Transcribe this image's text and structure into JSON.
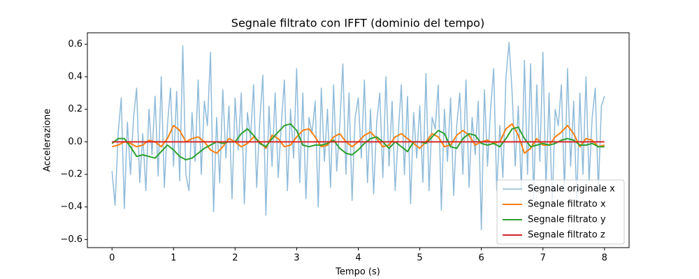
{
  "chart_data": {
    "type": "line",
    "title": "Segnale filtrato con IFFT (dominio del tempo)",
    "xlabel": "Tempo (s)",
    "ylabel": "Accelerazione",
    "xlim": [
      -0.4,
      8.4
    ],
    "ylim": [
      -0.65,
      0.67
    ],
    "xticks": [
      0,
      1,
      2,
      3,
      4,
      5,
      6,
      7,
      8
    ],
    "yticks": [
      {
        "value": -0.6,
        "label": "−0.6"
      },
      {
        "value": -0.4,
        "label": "−0.4"
      },
      {
        "value": -0.2,
        "label": "−0.2"
      },
      {
        "value": 0,
        "label": "0.0"
      },
      0.2,
      0.4,
      0.6
    ],
    "legend": "lower right",
    "series": [
      {
        "name": "Segnale originale x",
        "color": "#1f77b4",
        "alpha": 0.5,
        "width": 1.5,
        "x": [
          0,
          0.05,
          0.1,
          0.15,
          0.2,
          0.25,
          0.3,
          0.35,
          0.4,
          0.45,
          0.5,
          0.55,
          0.6,
          0.65,
          0.7,
          0.75,
          0.8,
          0.85,
          0.9,
          0.95,
          1,
          1.05,
          1.1,
          1.15,
          1.2,
          1.25,
          1.3,
          1.35,
          1.4,
          1.45,
          1.5,
          1.55,
          1.6,
          1.65,
          1.7,
          1.75,
          1.8,
          1.85,
          1.9,
          1.95,
          2,
          2.05,
          2.1,
          2.15,
          2.2,
          2.25,
          2.3,
          2.35,
          2.4,
          2.45,
          2.5,
          2.55,
          2.6,
          2.65,
          2.7,
          2.75,
          2.8,
          2.85,
          2.9,
          2.95,
          3,
          3.05,
          3.1,
          3.15,
          3.2,
          3.25,
          3.3,
          3.35,
          3.4,
          3.45,
          3.5,
          3.55,
          3.6,
          3.65,
          3.7,
          3.75,
          3.8,
          3.85,
          3.9,
          3.95,
          4,
          4.05,
          4.1,
          4.15,
          4.2,
          4.25,
          4.3,
          4.35,
          4.4,
          4.45,
          4.5,
          4.55,
          4.6,
          4.65,
          4.7,
          4.75,
          4.8,
          4.85,
          4.9,
          4.95,
          5,
          5.05,
          5.1,
          5.15,
          5.2,
          5.25,
          5.3,
          5.35,
          5.4,
          5.45,
          5.5,
          5.55,
          5.6,
          5.65,
          5.7,
          5.75,
          5.8,
          5.85,
          5.9,
          5.95,
          6,
          6.05,
          6.1,
          6.15,
          6.2,
          6.25,
          6.3,
          6.35,
          6.4,
          6.45,
          6.5,
          6.55,
          6.6,
          6.65,
          6.7,
          6.75,
          6.8,
          6.85,
          6.9,
          6.95,
          7,
          7.05,
          7.1,
          7.15,
          7.2,
          7.25,
          7.3,
          7.35,
          7.4,
          7.45,
          7.5,
          7.55,
          7.6,
          7.65,
          7.7,
          7.75,
          7.8,
          7.85,
          7.9,
          7.95,
          8
        ],
        "values": [
          -0.18,
          -0.39,
          0.05,
          0.27,
          -0.41,
          0.12,
          -0.2,
          0.15,
          0.33,
          -0.25,
          0.05,
          -0.3,
          0.2,
          -0.08,
          0.28,
          -0.21,
          0.4,
          -0.28,
          0.1,
          0.33,
          -0.15,
          0.31,
          -0.24,
          0.59,
          -0.2,
          -0.3,
          0.18,
          -0.12,
          0.38,
          -0.2,
          0.25,
          0.1,
          0.55,
          -0.43,
          0.15,
          -0.25,
          0.32,
          -0.1,
          0.22,
          -0.35,
          0.27,
          -0.05,
          0.3,
          -0.38,
          0.18,
          0.02,
          0.35,
          -0.28,
          0.12,
          0.41,
          -0.45,
          0.22,
          -0.15,
          0.3,
          -0.22,
          0.1,
          0.38,
          -0.3,
          0.2,
          -0.1,
          0.45,
          -0.25,
          0.3,
          -0.35,
          0.15,
          0.05,
          0.25,
          -0.4,
          0.33,
          -0.12,
          0.2,
          -0.28,
          0.35,
          -0.18,
          0.1,
          0.48,
          -0.2,
          0.3,
          -0.36,
          0.15,
          0.27,
          -0.1,
          0.38,
          -0.25,
          0.2,
          -0.32,
          0.12,
          0.3,
          -0.22,
          0.4,
          -0.15,
          0.25,
          -0.3,
          0.05,
          0.35,
          -0.2,
          0.28,
          -0.38,
          0.18,
          -0.1,
          0.22,
          -0.25,
          0.42,
          -0.3,
          0.15,
          0.08,
          0.35,
          -0.42,
          0.2,
          -0.12,
          0.27,
          -0.33,
          0.1,
          0.3,
          -0.2,
          0.38,
          -0.28,
          0.15,
          -0.08,
          0.25,
          -0.54,
          0.32,
          -0.15,
          0.2,
          0.45,
          -0.3,
          0.1,
          -0.22,
          0.4,
          0.61,
          0.3,
          -0.15,
          0.22,
          -0.3,
          0.5,
          -0.2,
          0.48,
          -0.35,
          0.35,
          -0.12,
          0.55,
          -0.28,
          0.3,
          -0.4,
          0.2,
          0.1,
          0.35,
          -0.3,
          0.45,
          -0.15,
          0.25,
          -0.38,
          0.3,
          -0.2,
          0.4,
          -0.25,
          0.15,
          0.33,
          -0.3,
          0.22,
          0.28
        ]
      },
      {
        "name": "Segnale filtrato x",
        "color": "#ff7f0e",
        "width": 2,
        "x": [
          0,
          0.1,
          0.2,
          0.3,
          0.4,
          0.5,
          0.6,
          0.7,
          0.8,
          0.9,
          1,
          1.1,
          1.2,
          1.3,
          1.4,
          1.5,
          1.6,
          1.7,
          1.8,
          1.9,
          2,
          2.1,
          2.2,
          2.3,
          2.4,
          2.5,
          2.6,
          2.7,
          2.8,
          2.9,
          3,
          3.1,
          3.2,
          3.3,
          3.4,
          3.5,
          3.6,
          3.7,
          3.8,
          3.9,
          4,
          4.1,
          4.2,
          4.3,
          4.4,
          4.5,
          4.6,
          4.7,
          4.8,
          4.9,
          5,
          5.1,
          5.2,
          5.3,
          5.4,
          5.5,
          5.6,
          5.7,
          5.8,
          5.9,
          6,
          6.1,
          6.2,
          6.3,
          6.4,
          6.5,
          6.6,
          6.7,
          6.8,
          6.9,
          7,
          7.1,
          7.2,
          7.3,
          7.4,
          7.5,
          7.6,
          7.7,
          7.8,
          7.9,
          8
        ],
        "values": [
          -0.03,
          -0.02,
          0.0,
          -0.01,
          -0.03,
          -0.02,
          0.01,
          0.0,
          -0.03,
          0.02,
          0.1,
          0.07,
          0.0,
          0.02,
          0.03,
          0.0,
          -0.05,
          -0.07,
          -0.03,
          0.02,
          0.0,
          -0.03,
          -0.01,
          0.03,
          0.0,
          -0.04,
          0.04,
          0.02,
          -0.03,
          -0.02,
          0.03,
          0.07,
          0.08,
          0.03,
          -0.03,
          -0.02,
          0.03,
          0.05,
          0.0,
          -0.03,
          0.0,
          0.04,
          0.06,
          0.02,
          -0.03,
          -0.02,
          0.03,
          0.05,
          0.02,
          -0.01,
          -0.04,
          0.0,
          0.05,
          0.03,
          -0.03,
          -0.02,
          0.04,
          0.07,
          0.04,
          -0.02,
          0.0,
          0.01,
          -0.01,
          0.0,
          0.08,
          0.11,
          0.04,
          -0.07,
          -0.04,
          0.02,
          -0.02,
          -0.02,
          0.03,
          0.06,
          0.1,
          0.05,
          -0.03,
          0.02,
          0.01,
          -0.03,
          -0.02
        ]
      },
      {
        "name": "Segnale filtrato y",
        "color": "#2ca02c",
        "width": 2,
        "x": [
          0,
          0.1,
          0.2,
          0.3,
          0.4,
          0.5,
          0.6,
          0.7,
          0.8,
          0.9,
          1,
          1.1,
          1.2,
          1.3,
          1.4,
          1.5,
          1.6,
          1.7,
          1.8,
          1.9,
          2,
          2.1,
          2.2,
          2.3,
          2.4,
          2.5,
          2.6,
          2.7,
          2.8,
          2.9,
          3,
          3.1,
          3.2,
          3.3,
          3.4,
          3.5,
          3.6,
          3.7,
          3.8,
          3.9,
          4,
          4.1,
          4.2,
          4.3,
          4.4,
          4.5,
          4.6,
          4.7,
          4.8,
          4.9,
          5,
          5.1,
          5.2,
          5.3,
          5.4,
          5.5,
          5.6,
          5.7,
          5.8,
          5.9,
          6,
          6.1,
          6.2,
          6.3,
          6.4,
          6.5,
          6.6,
          6.7,
          6.8,
          6.9,
          7,
          7.1,
          7.2,
          7.3,
          7.4,
          7.5,
          7.6,
          7.7,
          7.8,
          7.9,
          8
        ],
        "values": [
          -0.01,
          0.02,
          0.02,
          -0.03,
          -0.09,
          -0.08,
          -0.09,
          -0.1,
          -0.06,
          -0.02,
          -0.05,
          -0.09,
          -0.11,
          -0.1,
          -0.07,
          -0.04,
          -0.02,
          0.0,
          -0.01,
          0.0,
          0.0,
          0.05,
          0.08,
          0.04,
          -0.01,
          -0.03,
          0.02,
          0.06,
          0.1,
          0.11,
          0.07,
          -0.02,
          -0.03,
          -0.02,
          -0.02,
          -0.01,
          0.01,
          -0.04,
          -0.07,
          -0.08,
          -0.05,
          -0.01,
          0.02,
          0.03,
          0.0,
          -0.04,
          0.0,
          -0.03,
          -0.06,
          0.0,
          0.0,
          -0.01,
          0.03,
          0.07,
          0.05,
          -0.03,
          -0.04,
          0.02,
          0.05,
          0.04,
          -0.01,
          -0.02,
          -0.01,
          -0.03,
          0.02,
          0.08,
          0.09,
          0.02,
          -0.03,
          -0.02,
          -0.01,
          -0.02,
          -0.01,
          0.01,
          0.02,
          0.01,
          -0.02,
          -0.02,
          -0.01,
          -0.03,
          -0.03
        ]
      },
      {
        "name": "Segnale filtrato z",
        "color": "#d62728",
        "width": 2,
        "x": [
          0,
          1,
          2,
          3,
          4,
          5,
          6,
          7,
          8
        ],
        "values": [
          0,
          0,
          0,
          0,
          0,
          0,
          0,
          0,
          0
        ]
      }
    ]
  }
}
